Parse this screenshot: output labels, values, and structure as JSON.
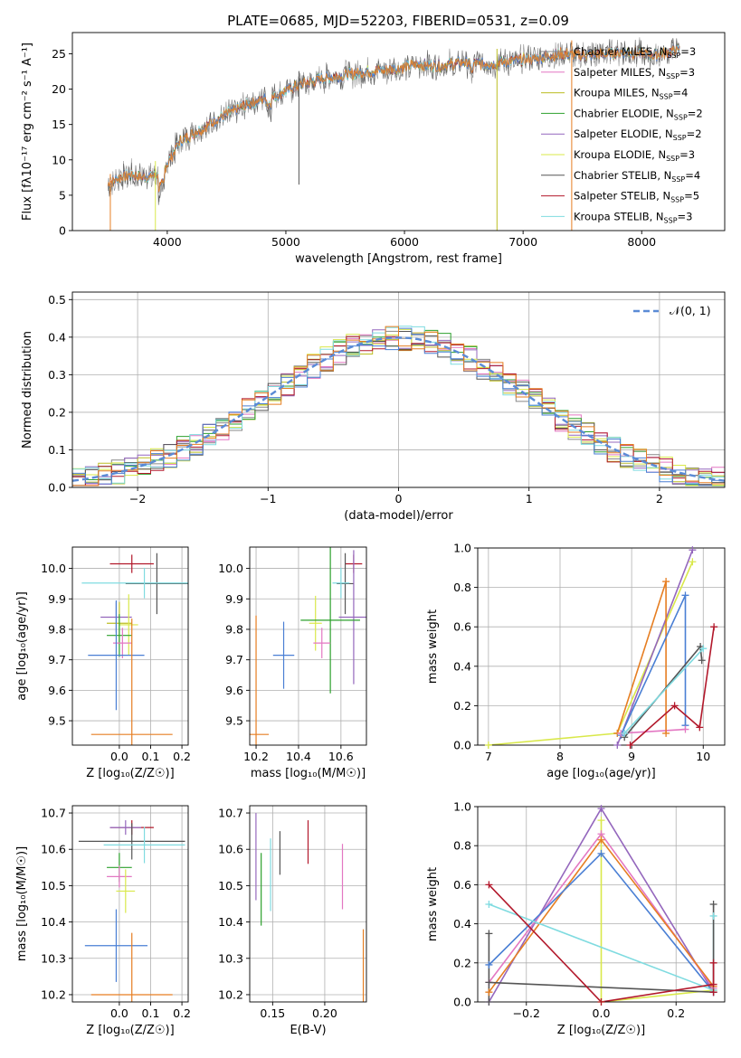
{
  "colors": {
    "chabrier_miles": "#888888",
    "salpeter_miles": "#e377c2",
    "kroupa_miles": "#bcbd22",
    "chabrier_elodie": "#2ca02c",
    "salpeter_elodie": "#9467bd",
    "kroupa_elodie": "#d9e84a",
    "chabrier_stelib": "#555555",
    "salpeter_stelib": "#b2182b",
    "kroupa_stelib": "#7fdbe0",
    "blue_extra": "#4a7fd4",
    "orange_extra": "#e67e22",
    "norm_curve": "#5b8bd6"
  },
  "chart_data": [
    {
      "id": "spectrum",
      "type": "line",
      "title": "PLATE=0685, MJD=52203, FIBERID=0531, z=0.09",
      "xlabel": "wavelength [Angstrom, rest frame]",
      "ylabel": "Flux [fλ10⁻¹⁷ erg cm⁻² s⁻¹ A⁻¹]",
      "xlim": [
        3200,
        8700
      ],
      "ylim": [
        0,
        28
      ],
      "xticks": [
        "4000",
        "5000",
        "6000",
        "7000",
        "8000"
      ],
      "yticks": [
        "0",
        "5",
        "10",
        "15",
        "20",
        "25"
      ],
      "legend_position": "right",
      "series": [
        {
          "name": "Chabrier MILES, N",
          "sub": "SSP",
          "suffix": "=3"
        },
        {
          "name": "Salpeter MILES, N",
          "sub": "SSP",
          "suffix": "=3"
        },
        {
          "name": "Kroupa MILES, N",
          "sub": "SSP",
          "suffix": "=4"
        },
        {
          "name": "Chabrier ELODIE, N",
          "sub": "SSP",
          "suffix": "=2"
        },
        {
          "name": "Salpeter ELODIE, N",
          "sub": "SSP",
          "suffix": "=2"
        },
        {
          "name": "Kroupa ELODIE, N",
          "sub": "SSP",
          "suffix": "=3"
        },
        {
          "name": "Chabrier STELIB, N",
          "sub": "SSP",
          "suffix": "=4"
        },
        {
          "name": "Salpeter STELIB, N",
          "sub": "SSP",
          "suffix": "=5"
        },
        {
          "name": "Kroupa STELIB, N",
          "sub": "SSP",
          "suffix": "=3"
        }
      ],
      "continuum": {
        "x": [
          3500,
          3600,
          3700,
          3800,
          3950,
          4100,
          4300,
          4500,
          4700,
          4900,
          5100,
          5300,
          5500,
          5700,
          5900,
          6100,
          6300,
          6500,
          6700,
          6900,
          7100,
          7300,
          7500,
          7700,
          7900,
          8100,
          8300
        ],
        "y": [
          6.5,
          7.5,
          8.0,
          7.5,
          8.0,
          12.5,
          14.5,
          16.5,
          18.0,
          19.0,
          20.5,
          21.5,
          22.0,
          22.5,
          22.8,
          23.5,
          23.3,
          23.8,
          23.5,
          24.0,
          24.3,
          25.0,
          24.8,
          25.0,
          25.2,
          24.8,
          25.5
        ]
      },
      "spikes": [
        {
          "x": 5110,
          "y": 6.5,
          "series": 6
        },
        {
          "x": 6780,
          "y": 0,
          "series": 2
        },
        {
          "x": 7410,
          "y": 0,
          "series": "orange"
        },
        {
          "x": 3900,
          "y": 0,
          "series": 5
        }
      ]
    },
    {
      "id": "residuals",
      "type": "line",
      "xlabel": "(data-model)/error",
      "ylabel": "Normed distribution",
      "xlim": [
        -2.5,
        2.5
      ],
      "ylim": [
        0,
        0.52
      ],
      "xticks": [
        "−2",
        "−1",
        "0",
        "1",
        "2"
      ],
      "yticks": [
        "0.0",
        "0.1",
        "0.2",
        "0.3",
        "0.4",
        "0.5"
      ],
      "legend": "𝒩(0, 1)",
      "legend_position": "top-right",
      "bin_width": 0.1
    },
    {
      "id": "age_vs_Z",
      "type": "scatter",
      "xlabel": "Z [log₁₀(Z/Z☉)]",
      "ylabel": "age  [log₁₀(age/yr)]",
      "xlim": [
        -0.15,
        0.22
      ],
      "ylim": [
        9.42,
        10.07
      ],
      "xticks": [
        "0.0",
        "0.1",
        "0.2"
      ],
      "yticks": [
        "9.5",
        "9.6",
        "9.7",
        "9.8",
        "9.9",
        "10.0"
      ],
      "points": [
        {
          "x": 0.04,
          "y": 10.015,
          "xerr": 0.07,
          "yerr": 0.03,
          "c": "salpeter_stelib"
        },
        {
          "x": 0.12,
          "y": 9.95,
          "xerr": 0.1,
          "yerr": 0.1,
          "c": "chabrier_stelib"
        },
        {
          "x": 0.08,
          "y": 9.952,
          "xerr": 0.2,
          "yerr": 0.05,
          "c": "kroupa_stelib"
        },
        {
          "x": -0.01,
          "y": 9.84,
          "xerr": 0.05,
          "yerr": 0.05,
          "c": "salpeter_elodie"
        },
        {
          "x": 0.0,
          "y": 9.82,
          "xerr": 0.04,
          "yerr": 0.07,
          "c": "kroupa_miles"
        },
        {
          "x": 0.03,
          "y": 9.815,
          "xerr": 0.03,
          "yerr": 0.1,
          "c": "kroupa_elodie"
        },
        {
          "x": 0.0,
          "y": 9.78,
          "xerr": 0.04,
          "yerr": 0.07,
          "c": "chabrier_elodie"
        },
        {
          "x": 0.01,
          "y": 9.755,
          "xerr": 0.03,
          "yerr": 0.05,
          "c": "salpeter_miles"
        },
        {
          "x": -0.01,
          "y": 9.715,
          "xerr": 0.09,
          "yerr": 0.18,
          "c": "blue_extra"
        },
        {
          "x": 0.04,
          "y": 9.455,
          "xerr": 0.13,
          "yerr": 0.38,
          "c": "orange_extra"
        }
      ]
    },
    {
      "id": "age_vs_mass",
      "type": "scatter",
      "xlabel": "mass [log₁₀(M/M☉)]",
      "xlim": [
        10.17,
        10.72
      ],
      "ylim": [
        9.42,
        10.07
      ],
      "xticks": [
        "10.2",
        "10.4",
        "10.6"
      ],
      "yticks": [
        "9.5",
        "9.6",
        "9.7",
        "9.8",
        "9.9",
        "10.0"
      ],
      "points": [
        {
          "x": 10.66,
          "y": 10.015,
          "xerr": 0.04,
          "yerr": 0.03,
          "c": "salpeter_stelib"
        },
        {
          "x": 10.62,
          "y": 9.95,
          "xerr": 0.04,
          "yerr": 0.1,
          "c": "chabrier_stelib"
        },
        {
          "x": 10.6,
          "y": 9.952,
          "xerr": 0.04,
          "yerr": 0.05,
          "c": "kroupa_stelib"
        },
        {
          "x": 10.66,
          "y": 9.84,
          "xerr": 0.07,
          "yerr": 0.22,
          "c": "salpeter_elodie"
        },
        {
          "x": 10.48,
          "y": 9.82,
          "xerr": 0.03,
          "yerr": 0.09,
          "c": "kroupa_elodie"
        },
        {
          "x": 10.55,
          "y": 9.83,
          "xerr": 0.14,
          "yerr": 0.24,
          "c": "chabrier_elodie"
        },
        {
          "x": 10.51,
          "y": 9.755,
          "xerr": 0.04,
          "yerr": 0.05,
          "c": "salpeter_miles"
        },
        {
          "x": 10.33,
          "y": 9.715,
          "xerr": 0.05,
          "yerr": 0.11,
          "c": "blue_extra"
        },
        {
          "x": 10.2,
          "y": 9.455,
          "xerr": 0.06,
          "yerr": 0.39,
          "c": "orange_extra"
        }
      ]
    },
    {
      "id": "mass_weight_vs_age",
      "type": "line",
      "xlabel": "age  [log₁₀(age/yr)]",
      "ylabel": "mass weight",
      "xlim": [
        6.85,
        10.3
      ],
      "ylim": [
        0,
        1
      ],
      "xticks": [
        "7",
        "8",
        "9",
        "10"
      ],
      "yticks": [
        "0.0",
        "0.2",
        "0.4",
        "0.6",
        "0.8",
        "1.0"
      ],
      "series": [
        {
          "c": "kroupa_elodie",
          "x": [
            7.0,
            8.8,
            9.85
          ],
          "y": [
            0.0,
            0.06,
            0.93
          ]
        },
        {
          "c": "salpeter_elodie",
          "x": [
            8.8,
            9.85
          ],
          "y": [
            0.0,
            0.99
          ]
        },
        {
          "c": "orange_extra",
          "x": [
            8.8,
            9.48,
            9.48
          ],
          "y": [
            0.06,
            0.83,
            0.06
          ]
        },
        {
          "c": "blue_extra",
          "x": [
            8.85,
            9.75,
            9.75
          ],
          "y": [
            0.05,
            0.76,
            0.1
          ]
        },
        {
          "c": "salpeter_miles",
          "x": [
            8.85,
            9.75
          ],
          "y": [
            0.06,
            0.08
          ]
        },
        {
          "c": "chabrier_stelib",
          "x": [
            8.9,
            9.96,
            9.98
          ],
          "y": [
            0.04,
            0.5,
            0.43
          ]
        },
        {
          "c": "kroupa_stelib",
          "x": [
            8.9,
            10.0
          ],
          "y": [
            0.06,
            0.49
          ]
        },
        {
          "c": "salpeter_stelib",
          "x": [
            8.98,
            9.6,
            9.95,
            10.15
          ],
          "y": [
            0.0,
            0.2,
            0.09,
            0.6
          ]
        }
      ]
    },
    {
      "id": "mass_vs_Z",
      "type": "scatter",
      "xlabel": "Z [log₁₀(Z/Z☉)]",
      "ylabel": "mass [log₁₀(M/M☉)]",
      "xlim": [
        -0.15,
        0.22
      ],
      "ylim": [
        10.18,
        10.72
      ],
      "xticks": [
        "0.0",
        "0.1",
        "0.2"
      ],
      "yticks": [
        "10.2",
        "10.3",
        "10.4",
        "10.5",
        "10.6",
        "10.7"
      ],
      "points": [
        {
          "x": 0.04,
          "y": 10.66,
          "xerr": 0.07,
          "yerr": 0.02,
          "c": "salpeter_stelib"
        },
        {
          "x": 0.02,
          "y": 10.66,
          "xerr": 0.05,
          "yerr": 0.02,
          "c": "salpeter_elodie"
        },
        {
          "x": 0.04,
          "y": 10.622,
          "xerr": 0.17,
          "yerr": 0.05,
          "c": "chabrier_stelib"
        },
        {
          "x": 0.08,
          "y": 10.612,
          "xerr": 0.13,
          "yerr": 0.05,
          "c": "kroupa_stelib"
        },
        {
          "x": 0.0,
          "y": 10.55,
          "xerr": 0.04,
          "yerr": 0.04,
          "c": "chabrier_elodie"
        },
        {
          "x": 0.0,
          "y": 10.525,
          "xerr": 0.04,
          "yerr": 0.03,
          "c": "salpeter_miles"
        },
        {
          "x": 0.02,
          "y": 10.485,
          "xerr": 0.03,
          "yerr": 0.06,
          "c": "kroupa_elodie"
        },
        {
          "x": -0.01,
          "y": 10.335,
          "xerr": 0.1,
          "yerr": 0.1,
          "c": "blue_extra"
        },
        {
          "x": 0.04,
          "y": 10.2,
          "xerr": 0.13,
          "yerr": 0.17,
          "c": "orange_extra"
        }
      ]
    },
    {
      "id": "mass_vs_EBV",
      "type": "scatter",
      "xlabel": "E(B-V)",
      "xlim": [
        0.128,
        0.24
      ],
      "ylim": [
        10.18,
        10.72
      ],
      "xticks": [
        "0.15",
        "0.20"
      ],
      "yticks": [
        "10.2",
        "10.3",
        "10.4",
        "10.5",
        "10.6",
        "10.7"
      ],
      "points": [
        {
          "x": 0.134,
          "y": 10.58,
          "yerr": 0.12,
          "c": "salpeter_elodie"
        },
        {
          "x": 0.139,
          "y": 10.49,
          "yerr": 0.1,
          "c": "chabrier_elodie"
        },
        {
          "x": 0.148,
          "y": 10.53,
          "yerr": 0.1,
          "c": "kroupa_stelib"
        },
        {
          "x": 0.157,
          "y": 10.59,
          "yerr": 0.06,
          "c": "chabrier_stelib"
        },
        {
          "x": 0.184,
          "y": 10.62,
          "yerr": 0.06,
          "c": "salpeter_stelib"
        },
        {
          "x": 0.217,
          "y": 10.525,
          "yerr": 0.09,
          "c": "salpeter_miles"
        },
        {
          "x": 0.237,
          "y": 10.28,
          "yerr": 0.1,
          "c": "orange_extra"
        }
      ]
    },
    {
      "id": "mass_weight_vs_Z",
      "type": "line",
      "xlabel": "Z [log₁₀(Z/Z☉)]",
      "ylabel": "mass weight",
      "xlim": [
        -0.33,
        0.33
      ],
      "ylim": [
        0,
        1
      ],
      "xticks": [
        "−0.2",
        "0.0",
        "0.2"
      ],
      "yticks": [
        "0.0",
        "0.2",
        "0.4",
        "0.6",
        "0.8",
        "1.0"
      ],
      "series": [
        {
          "c": "salpeter_elodie",
          "x": [
            -0.3,
            0.0,
            0.3
          ],
          "y": [
            0.0,
            0.99,
            0.05
          ]
        },
        {
          "c": "salpeter_miles",
          "x": [
            -0.3,
            0.0,
            0.3
          ],
          "y": [
            0.1,
            0.86,
            0.07
          ]
        },
        {
          "c": "orange_extra",
          "x": [
            -0.3,
            0.0,
            0.3
          ],
          "y": [
            0.05,
            0.83,
            0.08
          ]
        },
        {
          "c": "blue_extra",
          "x": [
            -0.3,
            0.0,
            0.3
          ],
          "y": [
            0.19,
            0.76,
            0.05
          ]
        },
        {
          "c": "kroupa_elodie",
          "x": [
            0.0,
            0.0,
            0.3
          ],
          "y": [
            0.93,
            0.0,
            0.06
          ]
        },
        {
          "c": "kroupa_stelib",
          "x": [
            -0.3,
            0.3,
            0.3
          ],
          "y": [
            0.5,
            0.06,
            0.44
          ]
        },
        {
          "c": "chabrier_stelib",
          "x": [
            -0.3,
            0.3,
            0.3
          ],
          "y": [
            0.1,
            0.05,
            0.5
          ]
        },
        {
          "c": "salpeter_stelib",
          "x": [
            -0.3,
            0.0,
            0.3
          ],
          "y": [
            0.6,
            0.0,
            0.09
          ]
        },
        {
          "c": "chabrier_stelib",
          "x": [
            -0.3,
            -0.3
          ],
          "y": [
            0.35,
            0.0
          ]
        },
        {
          "c": "salpeter_stelib",
          "x": [
            0.3,
            0.3
          ],
          "y": [
            0.2,
            0.05
          ]
        }
      ]
    }
  ]
}
